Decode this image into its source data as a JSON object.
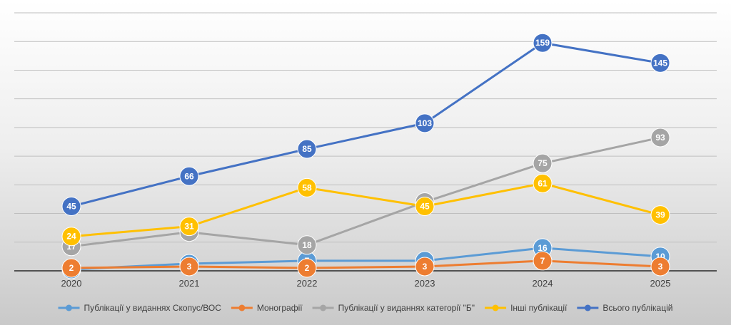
{
  "chart_data": {
    "type": "line",
    "title": "",
    "xlabel": "",
    "ylabel": "",
    "categories": [
      "2020",
      "2021",
      "2022",
      "2023",
      "2024",
      "2025"
    ],
    "ylim": [
      0,
      180
    ],
    "grid": true,
    "legend_position": "bottom",
    "series": [
      {
        "name": "Публікації у виданнях Скопус/ВОС",
        "color": "#5b9bd5",
        "values": [
          1,
          5,
          7,
          7,
          16,
          10
        ]
      },
      {
        "name": "Монографії",
        "color": "#ed7d31",
        "values": [
          2,
          3,
          2,
          3,
          7,
          3
        ]
      },
      {
        "name": "Публікації у виданнях категорії \"Б\"",
        "color": "#a5a5a5",
        "values": [
          17,
          27,
          18,
          48,
          75,
          93
        ]
      },
      {
        "name": "Інші публікації",
        "color": "#ffc000",
        "values": [
          24,
          31,
          58,
          45,
          61,
          39
        ]
      },
      {
        "name": "Всього публікацій",
        "color": "#4472c4",
        "values": [
          45,
          66,
          85,
          103,
          159,
          145
        ]
      }
    ],
    "data_labels": [
      [
        "",
        "5",
        "7",
        "7",
        "16",
        "10"
      ],
      [
        "2",
        "3",
        "2",
        "3",
        "7",
        "3"
      ],
      [
        "17",
        "27",
        "18",
        "48",
        "75",
        "93"
      ],
      [
        "24",
        "31",
        "58",
        "45",
        "61",
        "39"
      ],
      [
        "45",
        "66",
        "85",
        "103",
        "159",
        "145"
      ]
    ]
  }
}
